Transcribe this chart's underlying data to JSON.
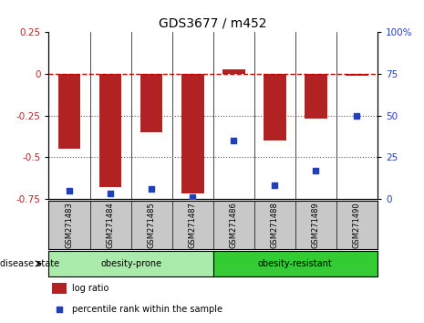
{
  "title": "GDS3677 / m452",
  "samples": [
    "GSM271483",
    "GSM271484",
    "GSM271485",
    "GSM271487",
    "GSM271486",
    "GSM271488",
    "GSM271489",
    "GSM271490"
  ],
  "log_ratio": [
    -0.45,
    -0.68,
    -0.35,
    -0.72,
    0.03,
    -0.4,
    -0.27,
    -0.01
  ],
  "percentile_rank": [
    5,
    3,
    6,
    1,
    35,
    8,
    17,
    50
  ],
  "ylim_left": [
    -0.75,
    0.25
  ],
  "ylim_right": [
    0,
    100
  ],
  "yticks_left": [
    -0.75,
    -0.5,
    -0.25,
    0,
    0.25
  ],
  "yticks_right": [
    0,
    25,
    50,
    75,
    100
  ],
  "ytick_right_labels": [
    "0",
    "25",
    "50",
    "75",
    "100%"
  ],
  "bar_color": "#B22222",
  "scatter_color": "#1F3FBB",
  "dashed_line_color": "#CC0000",
  "dotted_line_color": "#555555",
  "group1_label": "obesity-prone",
  "group2_label": "obesity-resistant",
  "group1_bg": "#AAEAAA",
  "group2_bg": "#33CC33",
  "sample_bg": "#C8C8C8",
  "disease_state_label": "disease state",
  "legend_logratio_label": "log ratio",
  "legend_percentile_label": "percentile rank within the sample",
  "title_fontsize": 10,
  "tick_fontsize": 7.5,
  "label_fontsize": 7,
  "sample_fontsize": 6
}
